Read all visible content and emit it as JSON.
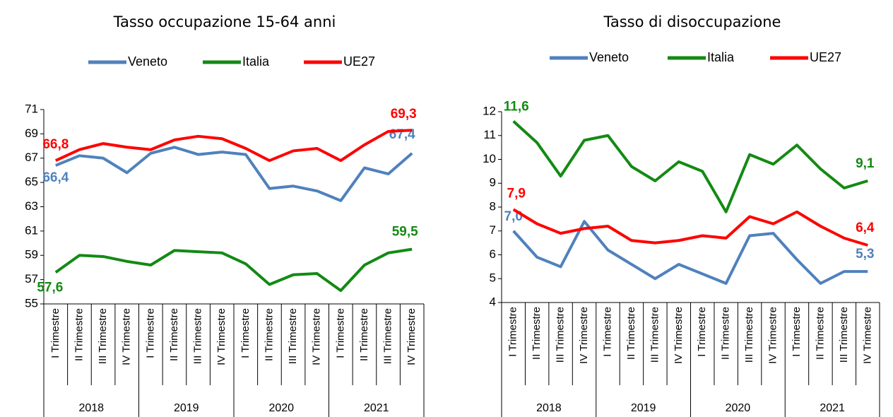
{
  "chart_data": [
    {
      "type": "line",
      "title": "Tasso occupazione 15-64 anni",
      "categories": [
        "I Trimestre",
        "II Trimestre",
        "III Trimestre",
        "IV Trimestre",
        "I Trimestre",
        "II Trimestre",
        "III Trimestre",
        "IV Trimestre",
        "I Trimestre",
        "II Trimestre",
        "III Trimestre",
        "IV Trimestre",
        "I Trimestre",
        "II Trimestre",
        "III Trimestre",
        "IV Trimestre"
      ],
      "years": [
        "2018",
        "2019",
        "2020",
        "2021"
      ],
      "ylim": [
        55,
        71
      ],
      "yticks": [
        55,
        57,
        59,
        61,
        63,
        65,
        67,
        69,
        71
      ],
      "series": [
        {
          "name": "Veneto",
          "color": "#4f81bd",
          "values": [
            66.4,
            67.2,
            67.0,
            65.8,
            67.4,
            67.9,
            67.3,
            67.5,
            67.3,
            64.5,
            64.7,
            64.3,
            63.5,
            66.2,
            65.7,
            67.4
          ],
          "value_labels": [
            "66,4",
            null,
            null,
            null,
            null,
            null,
            null,
            null,
            null,
            null,
            null,
            null,
            null,
            null,
            null,
            "67,4"
          ]
        },
        {
          "name": "Italia",
          "color": "#138a13",
          "values": [
            57.6,
            59.0,
            58.9,
            58.5,
            58.2,
            59.4,
            59.3,
            59.2,
            58.3,
            56.6,
            57.4,
            57.5,
            56.1,
            58.2,
            59.2,
            59.5
          ],
          "value_labels": [
            "57,6",
            null,
            null,
            null,
            null,
            null,
            null,
            null,
            null,
            null,
            null,
            null,
            null,
            null,
            null,
            "59,5"
          ]
        },
        {
          "name": "UE27",
          "color": "#ff0000",
          "values": [
            66.8,
            67.7,
            68.2,
            67.9,
            67.7,
            68.5,
            68.8,
            68.6,
            67.8,
            66.8,
            67.6,
            67.8,
            66.8,
            68.1,
            69.2,
            69.3
          ],
          "value_labels": [
            "66,8",
            null,
            null,
            null,
            null,
            null,
            null,
            null,
            null,
            null,
            null,
            null,
            null,
            null,
            null,
            "69,3"
          ]
        }
      ]
    },
    {
      "type": "line",
      "title": "Tasso di disoccupazione",
      "categories": [
        "I Trimestre",
        "II Trimestre",
        "III Trimestre",
        "IV Trimestre",
        "I Trimestre",
        "II Trimestre",
        "III Trimestre",
        "IV Trimestre",
        "I Trimestre",
        "II Trimestre",
        "III Trimestre",
        "IV Trimestre",
        "I Trimestre",
        "II Trimestre",
        "III Trimestre",
        "IV Trimestre"
      ],
      "years": [
        "2018",
        "2019",
        "2020",
        "2021"
      ],
      "ylim": [
        4,
        12
      ],
      "yticks": [
        4,
        5,
        6,
        7,
        8,
        9,
        10,
        11,
        12
      ],
      "series": [
        {
          "name": "Veneto",
          "color": "#4f81bd",
          "values": [
            7.0,
            5.9,
            5.5,
            7.4,
            6.2,
            5.6,
            5.0,
            5.6,
            5.2,
            4.8,
            6.8,
            6.9,
            5.8,
            4.8,
            5.3,
            5.3
          ],
          "value_labels": [
            "7,0",
            null,
            null,
            null,
            null,
            null,
            null,
            null,
            null,
            null,
            null,
            null,
            null,
            null,
            null,
            "5,3"
          ]
        },
        {
          "name": "Italia",
          "color": "#138a13",
          "values": [
            11.6,
            10.7,
            9.3,
            10.8,
            11.0,
            9.7,
            9.1,
            9.9,
            9.5,
            7.8,
            10.2,
            9.8,
            10.6,
            9.6,
            8.8,
            9.1
          ],
          "value_labels": [
            "11,6",
            null,
            null,
            null,
            null,
            null,
            null,
            null,
            null,
            null,
            null,
            null,
            null,
            null,
            null,
            "9,1"
          ]
        },
        {
          "name": "UE27",
          "color": "#ff0000",
          "values": [
            7.9,
            7.3,
            6.9,
            7.1,
            7.2,
            6.6,
            6.5,
            6.6,
            6.8,
            6.7,
            7.6,
            7.3,
            7.8,
            7.2,
            6.7,
            6.4
          ],
          "value_labels": [
            "7,9",
            null,
            null,
            null,
            null,
            null,
            null,
            null,
            null,
            null,
            null,
            null,
            null,
            null,
            null,
            "6,4"
          ]
        }
      ]
    }
  ]
}
